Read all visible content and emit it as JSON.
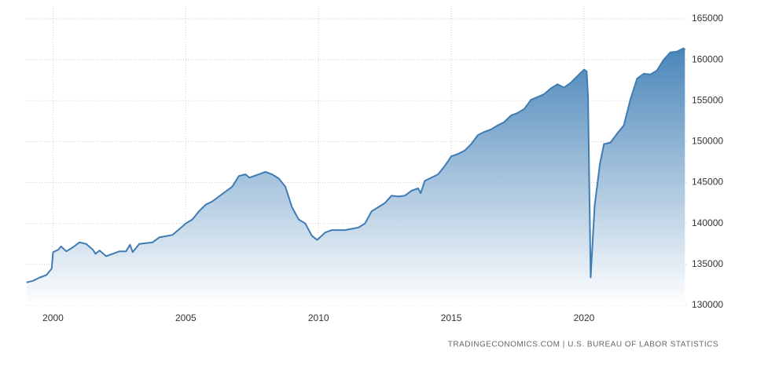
{
  "chart_data": {
    "type": "area",
    "source": "TRADINGECONOMICS.COM  |  U.S. BUREAU OF LABOR STATISTICS",
    "x": [
      1999.0,
      1999.25,
      1999.5,
      1999.75,
      1999.95,
      2000.0,
      2000.2,
      2000.3,
      2000.5,
      2000.75,
      2001.0,
      2001.25,
      2001.5,
      2001.6,
      2001.75,
      2002.0,
      2002.25,
      2002.5,
      2002.75,
      2002.9,
      2003.0,
      2003.25,
      2003.5,
      2003.75,
      2004.0,
      2004.5,
      2004.75,
      2005.0,
      2005.25,
      2005.5,
      2005.75,
      2006.0,
      2006.5,
      2006.75,
      2007.0,
      2007.25,
      2007.4,
      2007.75,
      2008.0,
      2008.25,
      2008.5,
      2008.75,
      2009.0,
      2009.25,
      2009.5,
      2009.75,
      2009.95,
      2010.25,
      2010.5,
      2010.75,
      2011.0,
      2011.5,
      2011.75,
      2012.0,
      2012.5,
      2012.75,
      2013.0,
      2013.25,
      2013.5,
      2013.75,
      2013.85,
      2014.0,
      2014.5,
      2014.75,
      2015.0,
      2015.25,
      2015.5,
      2015.75,
      2016.0,
      2016.25,
      2016.5,
      2016.75,
      2017.0,
      2017.25,
      2017.5,
      2017.75,
      2018.0,
      2018.5,
      2018.75,
      2019.0,
      2019.25,
      2019.5,
      2019.75,
      2020.0,
      2020.1,
      2020.15,
      2020.25,
      2020.4,
      2020.6,
      2020.75,
      2021.0,
      2021.25,
      2021.5,
      2021.75,
      2022.0,
      2022.25,
      2022.5,
      2022.75,
      2023.0,
      2023.25,
      2023.5,
      2023.75,
      2023.8
    ],
    "series": [
      {
        "color": "#3f7cb3",
        "values": [
          132800,
          133000,
          133400,
          133700,
          134500,
          136500,
          136800,
          137200,
          136600,
          137100,
          137700,
          137500,
          136800,
          136300,
          136700,
          136000,
          136300,
          136600,
          136600,
          137400,
          136500,
          137500,
          137600,
          137700,
          138300,
          138600,
          139300,
          140000,
          140500,
          141500,
          142300,
          142700,
          143900,
          144500,
          145800,
          146000,
          145600,
          146000,
          146300,
          146000,
          145500,
          144500,
          142000,
          140500,
          140000,
          138500,
          138000,
          138900,
          139200,
          139200,
          139200,
          139500,
          140000,
          141500,
          142500,
          143400,
          143300,
          143400,
          144000,
          144300,
          143700,
          145200,
          146000,
          147000,
          148200,
          148500,
          148900,
          149700,
          150800,
          151200,
          151500,
          152000,
          152400,
          153200,
          153500,
          154000,
          155100,
          155800,
          156500,
          157000,
          156600,
          157200,
          158000,
          158800,
          158600,
          155700,
          133400,
          142200,
          147300,
          149700,
          149900,
          151000,
          152000,
          155200,
          157700,
          158300,
          158200,
          158700,
          160000,
          160900,
          161000,
          161400,
          161200
        ]
      }
    ],
    "xlim": [
      1998.95,
      2023.85
    ],
    "xticks": [
      2000,
      2005,
      2010,
      2015,
      2020
    ],
    "ylim": [
      130000,
      165000
    ],
    "yticks": [
      130000,
      135000,
      140000,
      145000,
      150000,
      155000,
      160000,
      165000
    ],
    "grid": true
  }
}
